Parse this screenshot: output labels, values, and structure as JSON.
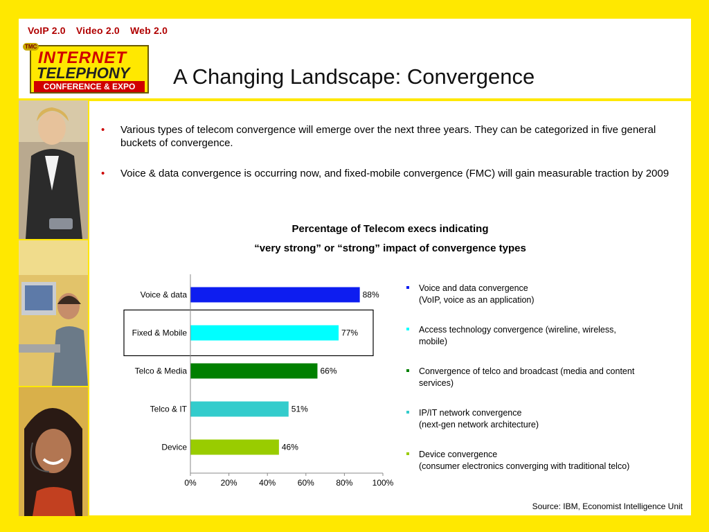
{
  "header": {
    "tagline": [
      "VoIP 2.0",
      "Video 2.0",
      "Web 2.0"
    ],
    "logo": {
      "badge": "TMC",
      "line1": "INTERNET",
      "line2": "TELEPHONY",
      "line3": "CONFERENCE & EXPO"
    },
    "title": "A Changing Landscape: Convergence"
  },
  "bullets": [
    "Various types of telecom convergence will emerge over the next three years.  They can be categorized in five general buckets of convergence.",
    "Voice & data convergence is occurring now, and fixed-mobile convergence (FMC) will gain measurable traction by 2009"
  ],
  "chart_title": {
    "line1": "Percentage of Telecom execs indicating",
    "line2": "“very strong” or “strong” impact of convergence types"
  },
  "chart_data": {
    "type": "bar",
    "orientation": "horizontal",
    "categories": [
      "Voice & data",
      "Fixed & Mobile",
      "Telco & Media",
      "Telco & IT",
      "Device"
    ],
    "values": [
      88,
      77,
      66,
      51,
      46
    ],
    "value_labels": [
      "88%",
      "77%",
      "66%",
      "51%",
      "46%"
    ],
    "colors": [
      "#0d1df0",
      "#00ffff",
      "#008000",
      "#33cccc",
      "#99cc00"
    ],
    "xlim": [
      0,
      100
    ],
    "xticks": [
      "0%",
      "20%",
      "40%",
      "60%",
      "80%",
      "100%"
    ],
    "highlighted_category": "Fixed & Mobile",
    "grid": false
  },
  "legend": [
    {
      "line1": "Voice and data convergence",
      "line2": "(VoIP, voice as an application)",
      "color": "#0d1df0"
    },
    {
      "line1": "Access technology convergence (wireline, wireless,",
      "line2": "mobile)",
      "color": "#00ffff"
    },
    {
      "line1": "Convergence of telco and broadcast (media and content",
      "line2": "services)",
      "color": "#008000"
    },
    {
      "line1": "IP/IT network convergence",
      "line2": "(next-gen network architecture)",
      "color": "#33cccc"
    },
    {
      "line1": "Device convergence",
      "line2": "(consumer electronics converging with traditional telco)",
      "color": "#99cc00"
    }
  ],
  "source": "Source: IBM, Economist Intelligence Unit"
}
